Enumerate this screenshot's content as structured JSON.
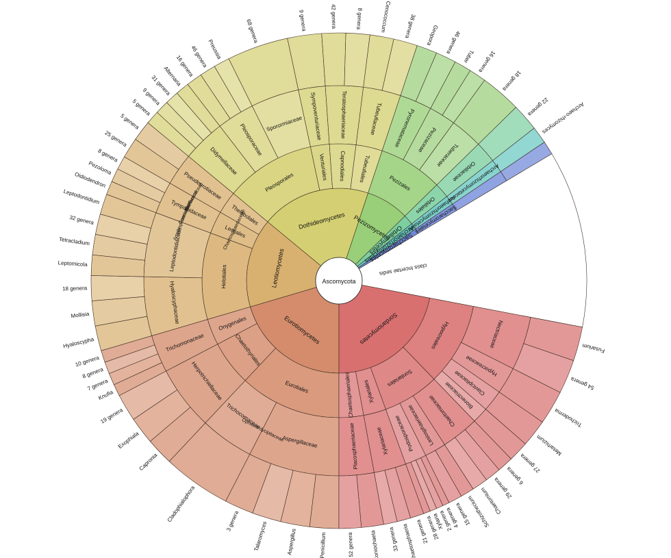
{
  "root": {
    "label": "Ascomycota"
  },
  "classes": [
    {
      "label": "Eurotiomycetes",
      "color": "#d48c6c",
      "span": 92,
      "orders": [
        {
          "label": "Eurotiales",
          "span": 54,
          "families": [
            {
              "label": "Aspergillaceae",
              "span": 34,
              "genera": [
                "Penicillium",
                "Aspergillus",
                "Talaromyces",
                "3 genera"
              ]
            },
            {
              "label": "Trichocomaceae",
              "span": 20,
              "genera": [
                "Cladophialophora"
              ]
            }
          ]
        },
        {
          "label": "Chaetothyriales",
          "span": 24,
          "families": [
            {
              "label": "Herpotrichiellaceae",
              "span": 24,
              "genera": [
                "Capronia",
                "Exophiala",
                "19 genera"
              ]
            }
          ]
        },
        {
          "label": "Onygenales",
          "span": 14,
          "families": [
            {
              "label": "Trichomonaceae",
              "span": 14,
              "genera": [
                "Knufia",
                "7 genera",
                "8 genera",
                "10 genera"
              ]
            }
          ]
        }
      ]
    },
    {
      "label": "Leotiomycetes",
      "color": "#d8b070",
      "span": 70,
      "orders": [
        {
          "label": "Helotiales",
          "span": 46,
          "families": [
            {
              "label": "Hyaloscyphaceae",
              "span": 22,
              "genera": [
                "Hyaloscypha",
                "Mollisia",
                "18 genera"
              ]
            },
            {
              "label": "Leptodontidiaceae",
              "span": 24,
              "genera": [
                "Leptomicola",
                "Tetracladium",
                "32 genera",
                "Leptodontidium"
              ]
            }
          ]
        },
        {
          "label": "Leotiales",
          "span": 12,
          "families": [
            {
              "label": "Tympanidaceae",
              "span": 12,
              "genera": [
                "Oidiodendron",
                "Pezoloma",
                "8 genera"
              ]
            }
          ]
        },
        {
          "label": "Thelebolales",
          "span": 12,
          "families": [
            {
              "label": "Pseudeurotiaceae",
              "span": 12,
              "genera": [
                "25 genera",
                "5 genera"
              ]
            }
          ]
        }
      ]
    },
    {
      "label": "Dothideomycetes",
      "color": "#d4cf72",
      "span": 86,
      "orders": [
        {
          "label": "Pleosporales",
          "span": 48,
          "families": [
            {
              "label": "Didymellaceae",
              "span": 16,
              "genera": [
                "5 genera",
                "9 genera",
                "31 genera",
                "Alternaria"
              ]
            },
            {
              "label": "Pleosporaceae",
              "span": 14,
              "genera": [
                "16 genera",
                "46 genera",
                "Preussia"
              ]
            },
            {
              "label": "Sporormiaceae",
              "span": 18,
              "genera": [
                "68 genera"
              ]
            }
          ]
        },
        {
          "label": "Venturiales",
          "span": 10,
          "families": [
            {
              "label": "Sympoventuriaceae",
              "span": 10,
              "genera": [
                "9 genera"
              ]
            }
          ]
        },
        {
          "label": "Capnodiales",
          "span": 14,
          "families": [
            {
              "label": "Teratosphaeriaceae",
              "span": 14,
              "genera": [
                "42 genera",
                "8 genera"
              ]
            }
          ]
        },
        {
          "label": "Tubeufiales",
          "span": 14,
          "families": [
            {
              "label": "Tubeufiaceae",
              "span": 14,
              "genera": [
                "Cenococcum",
                "38 genera"
              ]
            }
          ]
        }
      ]
    },
    {
      "label": "Pezizomycetes",
      "color": "#98cf78",
      "span": 34,
      "orders": [
        {
          "label": "Pezizales",
          "span": 34,
          "families": [
            {
              "label": "Pyronemataceae",
              "span": 12,
              "genera": [
                "Geopora",
                "46 genera"
              ]
            },
            {
              "label": "Pezizaceae",
              "span": 10,
              "genera": [
                "Tuber",
                "16 genera"
              ]
            },
            {
              "label": "Tuberaceae",
              "span": 12,
              "genera": [
                "18 genera"
              ]
            }
          ]
        }
      ]
    },
    {
      "label": "Orbiliomycetes",
      "color": "#7ccfa0",
      "span": 8,
      "orders": [
        {
          "label": "Orbiliales",
          "span": 8,
          "families": [
            {
              "label": "Orbiliaceae",
              "span": 8,
              "genera": [
                "22 genera"
              ]
            }
          ]
        }
      ]
    },
    {
      "label": "Archaeorhizomycetes",
      "color": "#68c8c0",
      "span": 5,
      "orders": [
        {
          "label": "Archaeorhizomycetales",
          "span": 5,
          "families": [
            {
              "label": "Archaeorhizomycetaceae",
              "span": 5,
              "genera": [
                "Archaeo-rhizomyces"
              ]
            }
          ]
        }
      ]
    },
    {
      "label": "Saccharomycetes",
      "color": "#6f88d8",
      "span": 4,
      "orders": [
        {
          "label": "Saccharomycetales",
          "span": 4,
          "families": [
            {
              "label": "",
              "span": 4,
              "genera": []
            }
          ]
        }
      ]
    },
    {
      "label": "class Incertae sedis",
      "color": "#ffffff",
      "span": 52,
      "blank": true,
      "orders": []
    },
    {
      "label": "Sordariomycetes",
      "color": "#d87070",
      "span": 99,
      "orders": [
        {
          "label": "Hypocreales",
          "span": 44,
          "families": [
            {
              "label": "Nectriaceae",
              "span": 20,
              "genera": [
                "Fusarium",
                "54 genera"
              ]
            },
            {
              "label": "Hypocreaceae",
              "span": 10,
              "genera": [
                "Trichoderma"
              ]
            },
            {
              "label": "Clavicipitaceae",
              "span": 8,
              "genera": [
                "Metarhizium"
              ]
            },
            {
              "label": "Bionectriaceae",
              "span": 6,
              "genera": [
                "27 genera"
              ]
            }
          ]
        },
        {
          "label": "Sordariales",
          "span": 30,
          "families": [
            {
              "label": "Chaetomiaceae",
              "span": 14,
              "genera": [
                "6 genera",
                "29 genera",
                "Chaetomium"
              ]
            },
            {
              "label": "Lasiosphaeriaceae",
              "span": 8,
              "genera": [
                "Schizothecium",
                "15 genera"
              ]
            },
            {
              "label": "Podosporaceae",
              "span": 8,
              "genera": [
                "4 genera",
                "2 genera",
                "Xylaria",
                "28 genera"
              ]
            }
          ]
        },
        {
          "label": "Xylariales",
          "span": 12,
          "families": [
            {
              "label": "Xylariaceae",
              "span": 12,
              "genera": [
                "21 genera",
                "Chaetosphaeria",
                "33 genera"
              ]
            }
          ]
        },
        {
          "label": "Chaetosphaeriales",
          "span": 13,
          "families": [
            {
              "label": "Placosphaeriaceae",
              "span": 13,
              "genera": [
                "Coniochaeta",
                "52 genera"
              ]
            }
          ]
        }
      ]
    }
  ],
  "extra_labels": {
    "eurotiales_family3": "Microascaceae",
    "sordario_family": "Coniochaetaceae",
    "sordario_family2": "Amphisphaeriaceae",
    "sordario_family3": "Chaetosphaeriaceae",
    "hypo_family_extra": "Ophiocordycipitaceae"
  }
}
